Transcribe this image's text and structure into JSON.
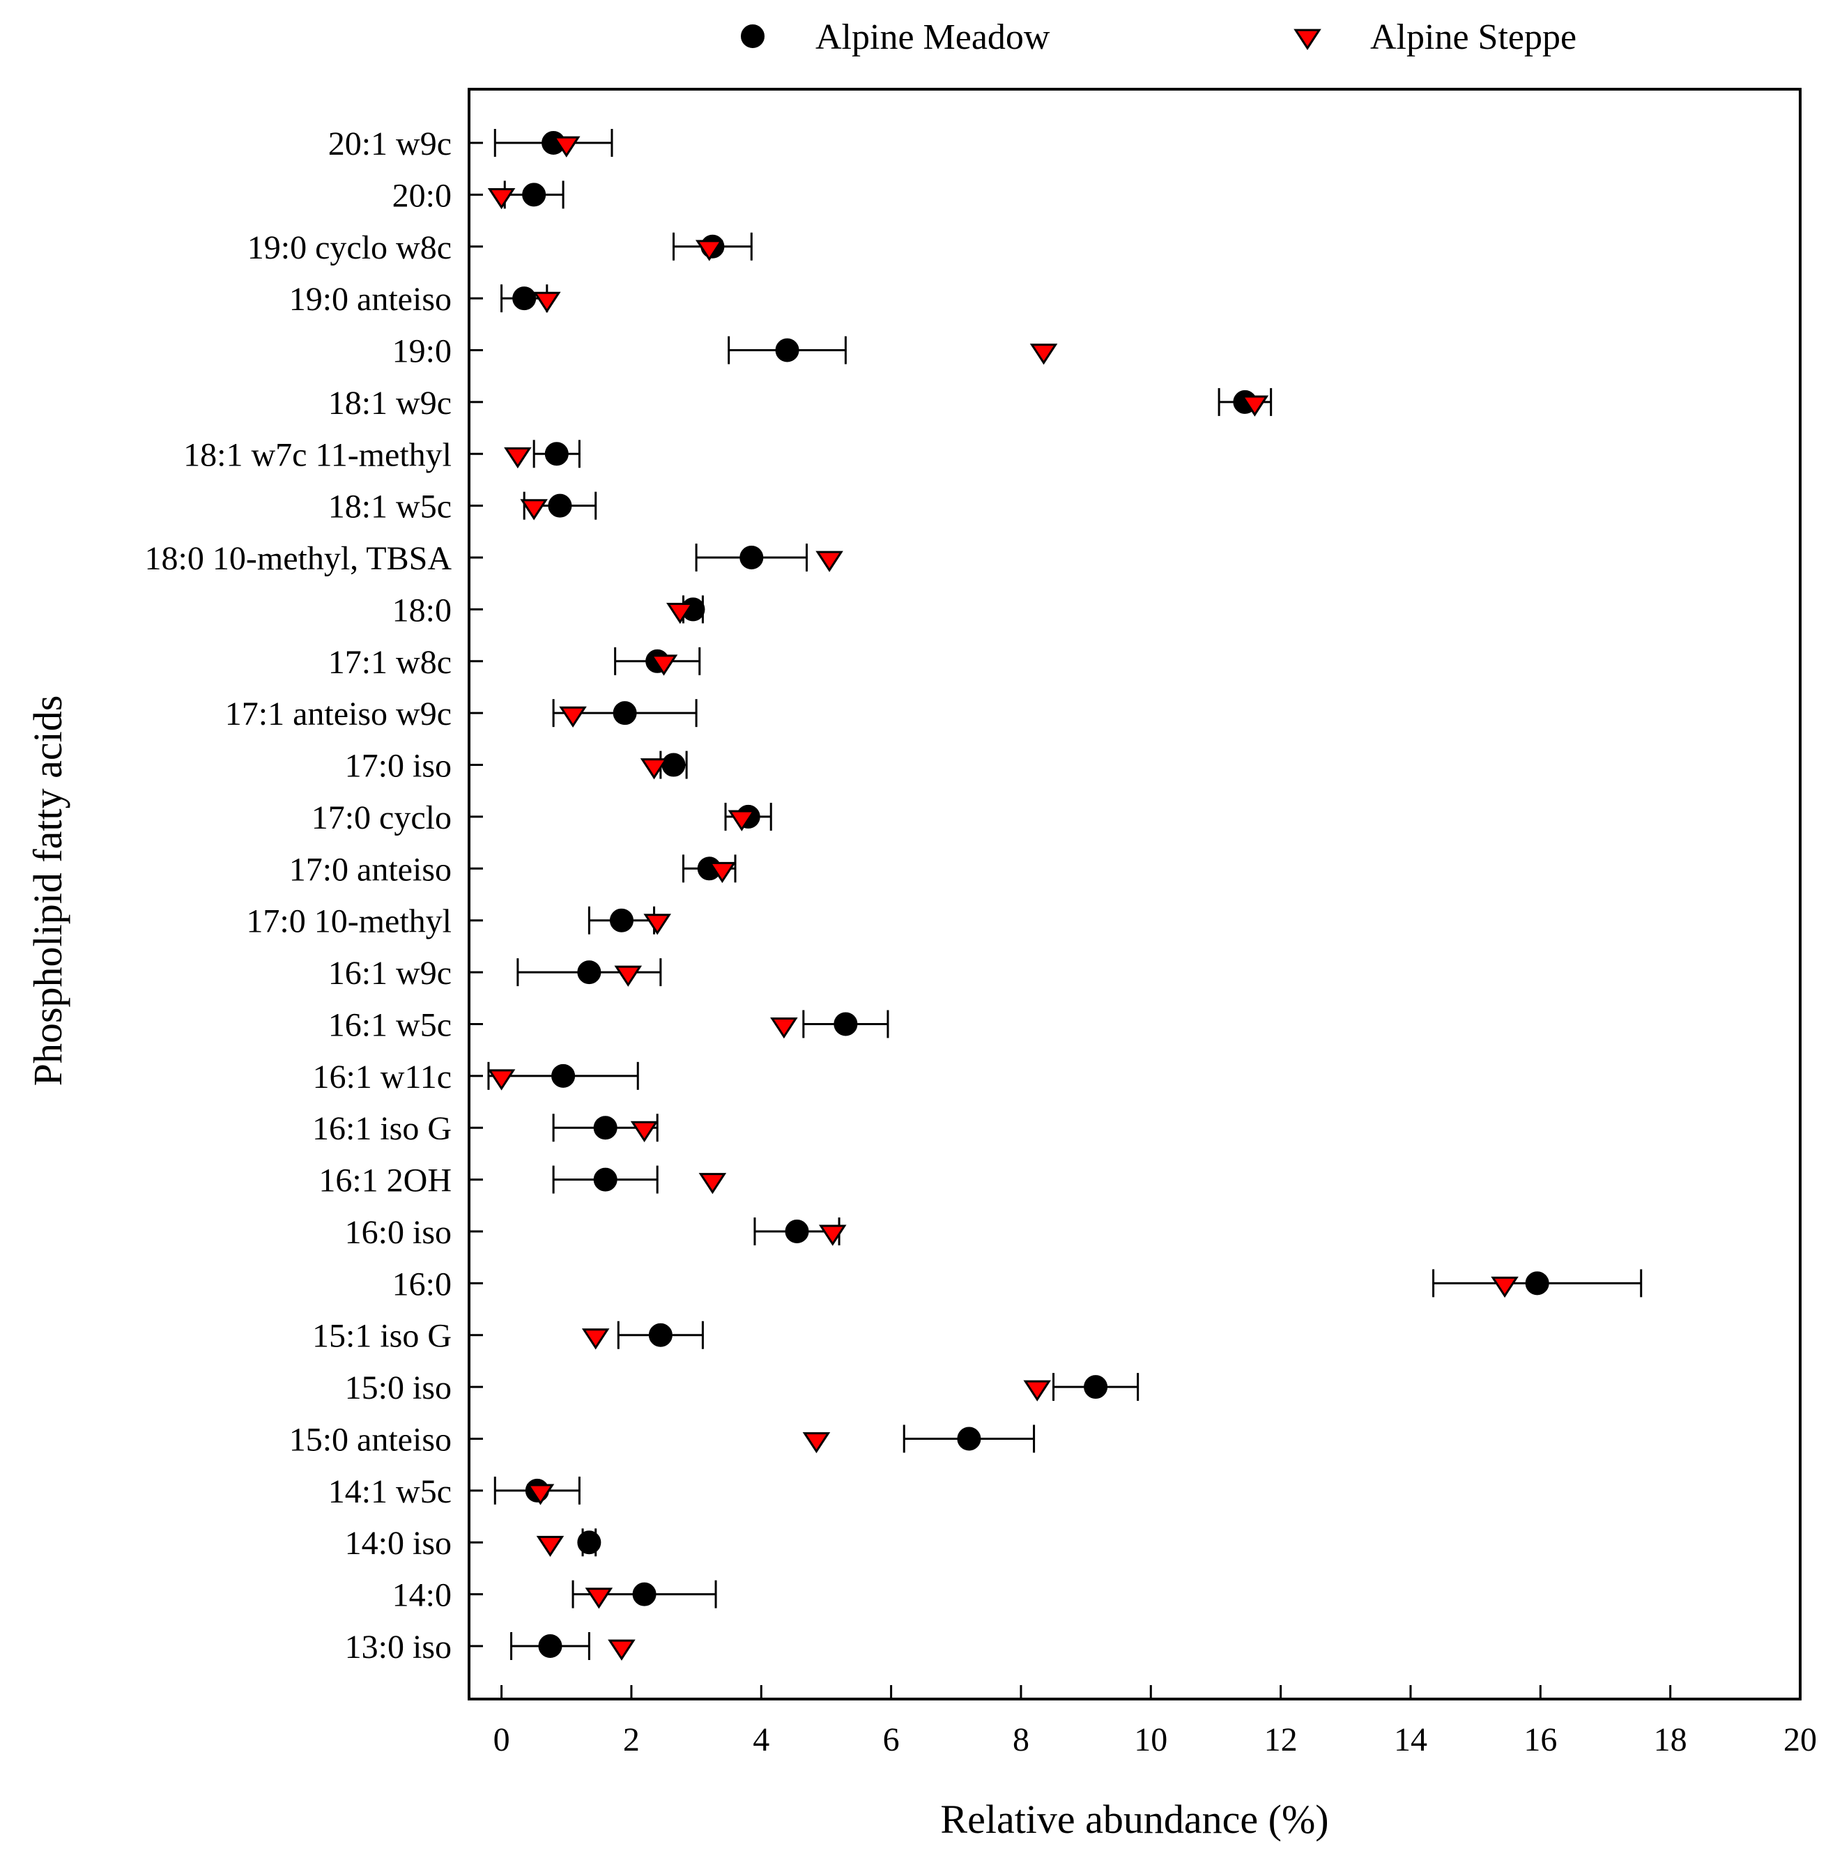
{
  "chart_data": {
    "type": "scatter",
    "title": "",
    "xlabel": "Relative abundance (%)",
    "ylabel": "Phospholipid fatty acids",
    "xlim": [
      -0.5,
      20
    ],
    "xticks": [
      0,
      2,
      4,
      6,
      8,
      10,
      12,
      14,
      16,
      18,
      20
    ],
    "grid": false,
    "legend_position": "top",
    "colors": {
      "meadow": "#000000",
      "steppe": "#ff0000",
      "axis": "#000000"
    },
    "categories": [
      "20:1 w9c",
      "20:0",
      "19:0 cyclo w8c",
      "19:0 anteiso",
      "19:0",
      "18:1 w9c",
      "18:1 w7c 11-methyl",
      "18:1 w5c",
      "18:0 10-methyl, TBSA",
      "18:0",
      "17:1 w8c",
      "17:1 anteiso w9c",
      "17:0 iso",
      "17:0 cyclo",
      "17:0 anteiso",
      "17:0 10-methyl",
      "16:1 w9c",
      "16:1 w5c",
      "16:1 w11c",
      "16:1 iso G",
      "16:1 2OH",
      "16:0 iso",
      "16:0",
      "15:1 iso G",
      "15:0 iso",
      "15:0 anteiso",
      "14:1 w5c",
      "14:0 iso",
      "14:0",
      "13:0 iso"
    ],
    "series": [
      {
        "name": "Alpine Meadow",
        "marker": "circle",
        "values": [
          0.8,
          0.5,
          3.25,
          0.35,
          4.4,
          11.45,
          0.85,
          0.9,
          3.85,
          2.95,
          2.4,
          1.9,
          2.65,
          3.8,
          3.2,
          1.85,
          1.35,
          5.3,
          0.95,
          1.6,
          1.6,
          4.55,
          15.95,
          2.45,
          9.15,
          7.2,
          0.55,
          1.35,
          2.2,
          0.75
        ],
        "errors": [
          0.9,
          0.45,
          0.6,
          0.35,
          0.9,
          0.4,
          0.35,
          0.55,
          0.85,
          0.15,
          0.65,
          1.1,
          0.2,
          0.35,
          0.4,
          0.5,
          1.1,
          0.65,
          1.15,
          0.8,
          0.8,
          0.65,
          1.6,
          0.65,
          0.65,
          1.0,
          0.65,
          0.1,
          1.1,
          0.6
        ]
      },
      {
        "name": "Alpine Steppe",
        "marker": "triangle-down",
        "values": [
          1.0,
          0.0,
          3.2,
          0.7,
          8.35,
          11.6,
          0.25,
          0.5,
          5.05,
          2.75,
          2.5,
          1.1,
          2.35,
          3.7,
          3.4,
          2.4,
          1.95,
          4.35,
          0.0,
          2.2,
          3.25,
          5.1,
          15.45,
          1.45,
          8.25,
          4.85,
          0.6,
          0.75,
          1.5,
          1.85
        ]
      }
    ]
  }
}
